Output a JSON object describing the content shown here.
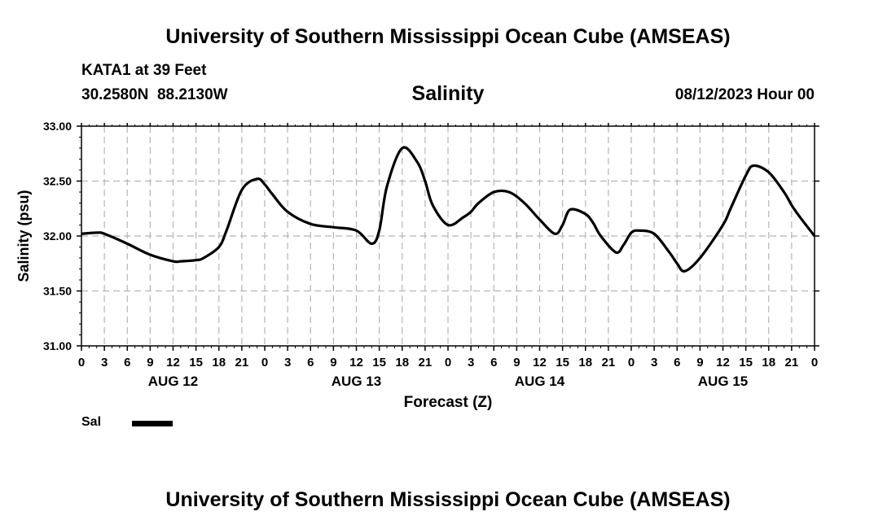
{
  "header": {
    "title": "University of Southern Mississippi Ocean Cube (AMSEAS)",
    "station": "KATA1 at 39 Feet",
    "coords": "30.2580N  88.2130W",
    "variable": "Salinity",
    "datetime": "08/12/2023 Hour 00"
  },
  "footer": {
    "title": "University of Southern Mississippi Ocean Cube (AMSEAS)"
  },
  "legend": {
    "label": "Sal"
  },
  "chart_data": {
    "type": "line",
    "title": "Salinity",
    "xlabel": "Forecast (Z)",
    "ylabel": "Salinity (psu)",
    "xlim": [
      0,
      96
    ],
    "ylim": [
      31.0,
      33.0
    ],
    "y_ticks": [
      "31.00",
      "31.50",
      "32.00",
      "32.50",
      "33.00"
    ],
    "x_tick_hours": [
      0,
      3,
      6,
      9,
      12,
      15,
      18,
      21,
      24,
      27,
      30,
      33,
      36,
      39,
      42,
      45,
      48,
      51,
      54,
      57,
      60,
      63,
      66,
      69,
      72,
      75,
      78,
      81,
      84,
      87,
      90,
      93,
      96
    ],
    "x_tick_labels": [
      "0",
      "3",
      "6",
      "9",
      "12",
      "15",
      "18",
      "21",
      "0",
      "3",
      "6",
      "9",
      "12",
      "15",
      "18",
      "21",
      "0",
      "3",
      "6",
      "9",
      "12",
      "15",
      "18",
      "21",
      "0",
      "3",
      "6",
      "9",
      "12",
      "15",
      "18",
      "21",
      "0"
    ],
    "day_labels": [
      {
        "hour": 12,
        "label": "AUG 12"
      },
      {
        "hour": 36,
        "label": "AUG 13"
      },
      {
        "hour": 60,
        "label": "AUG 14"
      },
      {
        "hour": 84,
        "label": "AUG 15"
      }
    ],
    "grid": true,
    "series": [
      {
        "name": "Sal",
        "color": "#000000",
        "x": [
          0,
          2,
          3,
          6,
          9,
          12,
          13,
          15,
          16,
          18,
          19,
          21,
          23,
          24,
          25,
          27,
          30,
          33,
          36,
          38,
          39,
          40,
          42,
          44,
          45,
          46,
          48,
          50,
          51,
          52,
          54,
          56,
          58,
          60,
          62,
          63,
          64,
          66,
          67,
          68,
          70,
          71,
          72,
          73,
          75,
          77,
          78,
          79,
          81,
          84,
          85,
          87,
          88,
          90,
          92,
          93,
          94,
          96
        ],
        "values": [
          32.02,
          32.03,
          32.02,
          31.93,
          31.83,
          31.77,
          31.77,
          31.78,
          31.8,
          31.9,
          32.05,
          32.42,
          32.52,
          32.47,
          32.38,
          32.22,
          32.11,
          32.08,
          32.05,
          31.93,
          32.05,
          32.45,
          32.8,
          32.67,
          32.5,
          32.28,
          32.1,
          32.17,
          32.22,
          32.3,
          32.4,
          32.4,
          32.3,
          32.15,
          32.02,
          32.1,
          32.24,
          32.2,
          32.12,
          32.0,
          31.85,
          31.92,
          32.03,
          32.05,
          32.02,
          31.85,
          31.75,
          31.68,
          31.8,
          32.1,
          32.25,
          32.55,
          32.64,
          32.58,
          32.4,
          32.28,
          32.18,
          32.0
        ]
      }
    ]
  }
}
